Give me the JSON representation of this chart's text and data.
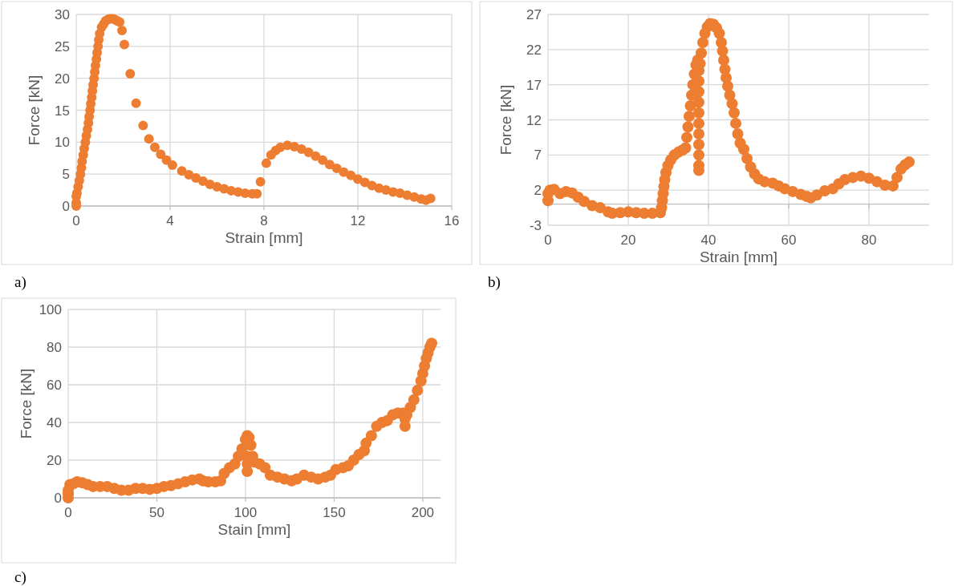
{
  "chart_data": [
    {
      "type": "scatter",
      "xlabel": "Strain [mm]",
      "ylabel": "Force [kN]",
      "xlim": [
        0,
        16
      ],
      "xticks": [
        0,
        4,
        8,
        12,
        16
      ],
      "ylim": [
        0,
        30
      ],
      "yticks": [
        0,
        5,
        10,
        15,
        20,
        25,
        30
      ],
      "grid": true,
      "marker": "circle",
      "annotations": [
        "a)"
      ],
      "series": [
        {
          "color": "#ed7d31",
          "x": [
            0,
            0,
            0,
            0.03,
            0.08,
            0.13,
            0.18,
            0.22,
            0.25,
            0.3,
            0.34,
            0.39,
            0.43,
            0.48,
            0.52,
            0.55,
            0.59,
            0.62,
            0.66,
            0.69,
            0.72,
            0.76,
            0.79,
            0.82,
            0.86,
            0.89,
            0.93,
            0.96,
            1.0,
            1.08,
            1.17,
            1.25,
            1.35,
            1.45,
            1.55,
            1.65,
            1.75,
            1.85,
            1.95,
            2.05,
            2.3,
            2.55,
            2.85,
            3.1,
            3.35,
            3.6,
            3.85,
            4.1,
            4.5,
            4.8,
            5.1,
            5.4,
            5.7,
            6.0,
            6.3,
            6.6,
            6.9,
            7.2,
            7.5,
            7.7,
            7.85,
            8.1,
            8.3,
            8.5,
            8.7,
            9.0,
            9.3,
            9.6,
            9.9,
            10.2,
            10.5,
            10.8,
            11.1,
            11.4,
            11.7,
            12.0,
            12.3,
            12.6,
            12.9,
            13.2,
            13.5,
            13.8,
            14.1,
            14.4,
            14.7,
            14.9,
            15.1
          ],
          "values": [
            0,
            0.5,
            1.5,
            2,
            3,
            4,
            5,
            6,
            7,
            8,
            9,
            10,
            11,
            12,
            13,
            14,
            15,
            16,
            17,
            18,
            19,
            20,
            21,
            22,
            23,
            24,
            25,
            26,
            27,
            28,
            28.5,
            29,
            29.2,
            29.3,
            29.3,
            29.2,
            29.0,
            28.8,
            27.5,
            25.3,
            20.7,
            16.1,
            12.6,
            10.5,
            9.2,
            8.1,
            7.2,
            6.4,
            5.5,
            4.9,
            4.4,
            3.9,
            3.4,
            3.0,
            2.7,
            2.4,
            2.2,
            2.0,
            1.9,
            1.9,
            3.8,
            6.7,
            8.0,
            8.7,
            9.2,
            9.5,
            9.3,
            8.9,
            8.4,
            7.8,
            7.2,
            6.5,
            5.9,
            5.3,
            4.8,
            4.2,
            3.7,
            3.2,
            2.8,
            2.5,
            2.2,
            2.0,
            1.7,
            1.4,
            1.1,
            0.9,
            1.2
          ]
        }
      ]
    },
    {
      "type": "scatter",
      "xlabel": "Strain [mm]",
      "ylabel": "Force [kN]",
      "xlim": [
        0,
        95
      ],
      "xticks": [
        0,
        20,
        40,
        60,
        80
      ],
      "ylim": [
        -3,
        27
      ],
      "yticks": [
        -3,
        2,
        7,
        12,
        17,
        22,
        27
      ],
      "grid": true,
      "marker": "circle",
      "annotations": [
        "b)"
      ],
      "series": [
        {
          "color": "#ed7d31",
          "x": [
            0,
            0,
            0.5,
            1.5,
            3,
            4.5,
            6,
            7.5,
            9,
            11,
            13,
            15,
            16,
            18,
            20,
            22,
            24,
            26,
            28,
            28.3,
            28.5,
            28.7,
            28.9,
            29.1,
            29.4,
            29.9,
            30.6,
            31.5,
            32.5,
            33.5,
            34.3,
            34.6,
            34.9,
            35.2,
            35.5,
            35.8,
            36.1,
            36.5,
            36.9,
            37.3,
            37.6,
            37.6,
            37.6,
            37.6,
            37.6,
            37.6,
            37.6,
            37.6,
            37.6,
            37.6,
            37.6,
            37.9,
            38.2,
            38.6,
            39.1,
            39.7,
            40.4,
            41.2,
            42,
            42.7,
            43.2,
            43.5,
            43.8,
            44.1,
            44.4,
            44.8,
            45.3,
            45.9,
            46.4,
            46.8,
            47.3,
            47.9,
            48.8,
            49.6,
            50.5,
            51.5,
            52.5,
            54,
            56,
            57.5,
            59,
            61,
            63,
            64.5,
            65.5,
            67,
            69,
            71,
            72.5,
            74,
            76,
            78,
            80,
            82,
            84,
            86,
            87,
            88,
            89,
            90
          ],
          "values": [
            0.5,
            1.5,
            2,
            2.1,
            1.5,
            1.8,
            1.6,
            1.0,
            0.4,
            -0.2,
            -0.5,
            -1.1,
            -1.3,
            -1.2,
            -1.1,
            -1.2,
            -1.3,
            -1.3,
            -1.2,
            -0.5,
            0.5,
            1.5,
            2.5,
            3.5,
            4.5,
            5.5,
            6.3,
            7,
            7.4,
            7.7,
            8,
            9.5,
            11,
            12.5,
            14,
            15.5,
            17,
            18.5,
            19.8,
            20.5,
            19,
            17.5,
            16,
            14.5,
            13,
            11.5,
            10,
            8.5,
            7,
            5.5,
            4.8,
            20,
            21.5,
            23,
            24.3,
            25.2,
            25.7,
            25.6,
            25.1,
            24.3,
            23,
            21.8,
            20.5,
            19.2,
            18,
            16.8,
            15.5,
            14.3,
            13,
            11.5,
            10,
            8.7,
            7.8,
            6.5,
            5.3,
            4.3,
            3.6,
            3.2,
            3.0,
            2.6,
            2.2,
            1.8,
            1.4,
            1.1,
            0.9,
            1.3,
            1.9,
            2.2,
            2.9,
            3.5,
            3.8,
            4.0,
            3.7,
            3.2,
            2.7,
            2.6,
            3.8,
            5,
            5.6,
            6
          ]
        }
      ]
    },
    {
      "type": "scatter",
      "xlabel": "Stain [mm]",
      "ylabel": "Force [kN]",
      "xlim": [
        0,
        210
      ],
      "xticks": [
        0,
        50,
        100,
        150,
        200
      ],
      "ylim": [
        0,
        100
      ],
      "yticks": [
        0,
        20,
        40,
        60,
        80,
        100
      ],
      "grid": true,
      "marker": "circle",
      "annotations": [
        "c)"
      ],
      "series": [
        {
          "color": "#ed7d31",
          "x": [
            0,
            0,
            0,
            1,
            3,
            5,
            8,
            11,
            14,
            18,
            22,
            26,
            30,
            34,
            38,
            42,
            46,
            50,
            54,
            58,
            62,
            66,
            70,
            74,
            76,
            79,
            83,
            86,
            88,
            91,
            94,
            96,
            98,
            100,
            101,
            101,
            101,
            101,
            102,
            103,
            104,
            105,
            108,
            111,
            114,
            118,
            122,
            126,
            129,
            133,
            137,
            141,
            145,
            148,
            151,
            155,
            158,
            161,
            164,
            167,
            168,
            171,
            174,
            177,
            180,
            183,
            186,
            189,
            190,
            190,
            191,
            193,
            195,
            197,
            199,
            200,
            201,
            202,
            203,
            204,
            205
          ],
          "values": [
            0,
            2,
            4,
            7,
            7.5,
            8.5,
            8,
            7,
            6,
            6,
            6,
            5,
            4,
            4,
            5,
            5,
            4.5,
            5,
            6,
            6.5,
            7.5,
            8.5,
            9.5,
            10,
            9,
            8.5,
            8.5,
            9,
            13,
            16,
            18,
            22,
            26,
            31,
            33,
            22,
            18,
            14,
            32,
            28,
            22,
            19,
            18,
            16,
            12,
            11,
            10,
            9,
            10,
            12,
            11,
            10,
            11,
            12,
            15,
            16,
            17,
            20,
            23,
            25,
            29,
            33,
            38,
            40,
            41,
            44,
            45,
            45,
            42,
            38,
            44,
            48,
            52,
            57,
            62,
            66,
            70,
            74,
            77,
            80,
            82
          ]
        }
      ]
    }
  ]
}
